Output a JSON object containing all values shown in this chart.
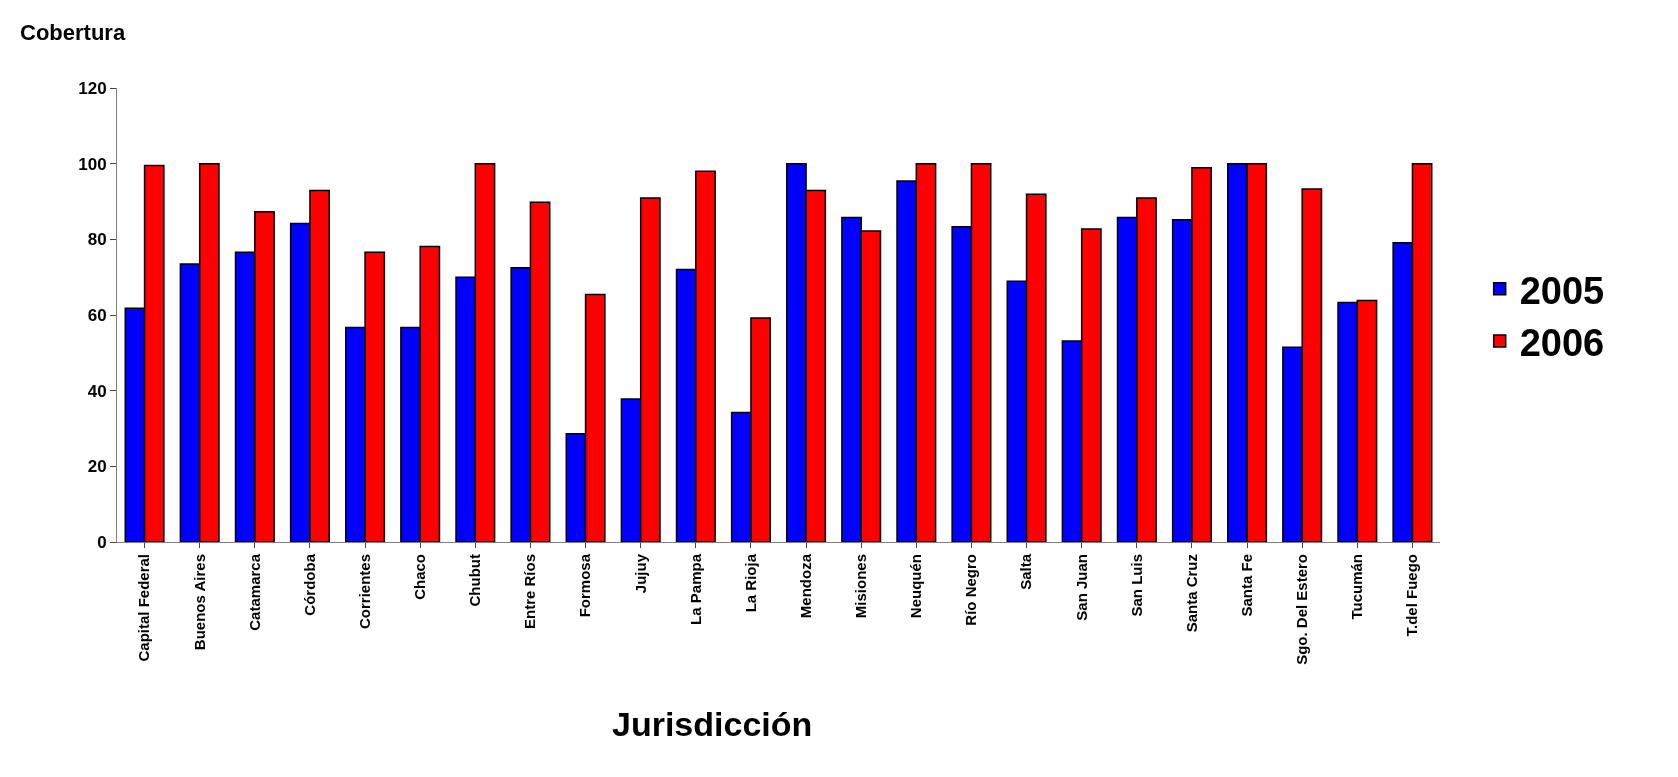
{
  "chart_data": {
    "type": "bar",
    "ylabel": "Cobertura",
    "xlabel": "Jurisdicción",
    "categories": [
      "Capital Federal",
      "Buenos Aires",
      "Catamarca",
      "Córdoba",
      "Corrientes",
      "Chaco",
      "Chubut",
      "Entre Ríos",
      "Formosa",
      "Jujuy",
      "La Pampa",
      "La Rioja",
      "Mendoza",
      "Misiones",
      "Neuquén",
      "Río Negro",
      "Salta",
      "San Juan",
      "San Luis",
      "Santa Cruz",
      "Santa Fe",
      "Sgo. Del Estero",
      "Tucumán",
      "T.del Fuego"
    ],
    "series": [
      {
        "name": "2005",
        "color": "#0000ff",
        "values": [
          61.8,
          73.5,
          76.6,
          84.2,
          56.7,
          56.7,
          70,
          72.5,
          28.6,
          37.8,
          72,
          34.2,
          100,
          85.8,
          95.4,
          83.3,
          68.9,
          53.1,
          85.8,
          85.2,
          100,
          51.5,
          63.3,
          79.1
        ]
      },
      {
        "name": "2006",
        "color": "#ff0000",
        "values": [
          99.5,
          100,
          87.3,
          92.9,
          76.6,
          78.1,
          100,
          89.8,
          65.4,
          90.9,
          98,
          59.2,
          92.9,
          82.2,
          100,
          100,
          91.9,
          82.7,
          90.9,
          98.9,
          100,
          93.3,
          63.8,
          100
        ]
      }
    ],
    "ylim": [
      0,
      120
    ],
    "yticks": [
      0,
      20,
      40,
      60,
      80,
      100,
      120
    ],
    "legend": "right"
  }
}
